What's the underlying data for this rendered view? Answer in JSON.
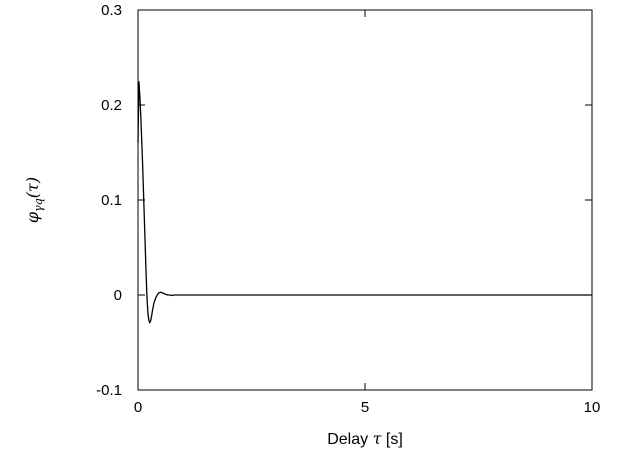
{
  "chart_data": {
    "type": "line",
    "title": "",
    "xlabel": {
      "prefix": "Delay ",
      "symbol": "τ",
      "suffix": " [s]"
    },
    "ylabel": {
      "symbol": "φ",
      "subscript": "γq",
      "arg": "(τ)"
    },
    "xlim": [
      0,
      10
    ],
    "ylim": [
      -0.1,
      0.3
    ],
    "xticks": [
      0,
      5,
      10
    ],
    "xtick_labels": [
      "0",
      "5",
      "10"
    ],
    "yticks": [
      -0.1,
      0,
      0.1,
      0.2,
      0.3
    ],
    "ytick_labels": [
      "-0.1",
      "0",
      "0.1",
      "0.2",
      "0.3"
    ],
    "grid": false,
    "series": [
      {
        "color": "#000000",
        "x": [
          0,
          0.02,
          0.04,
          0.06,
          0.08,
          0.1,
          0.12,
          0.14,
          0.16,
          0.18,
          0.2,
          0.22,
          0.24,
          0.26,
          0.28,
          0.3,
          0.32,
          0.34,
          0.36,
          0.4,
          0.45,
          0.5,
          0.55,
          0.6,
          0.65,
          0.7,
          0.75,
          0.8,
          0.9,
          1.0,
          1.2,
          1.5,
          2,
          3,
          4,
          5,
          6,
          7,
          8,
          9,
          10
        ],
        "y": [
          0.16,
          0.225,
          0.21,
          0.19,
          0.165,
          0.14,
          0.11,
          0.08,
          0.05,
          0.02,
          -0.005,
          -0.02,
          -0.027,
          -0.029,
          -0.027,
          -0.022,
          -0.016,
          -0.011,
          -0.007,
          -0.002,
          0.002,
          0.003,
          0.002,
          0.001,
          0.0,
          0.0,
          -0.0005,
          0.0,
          0.0,
          0.0,
          0.0,
          0.0,
          0.0,
          0.0,
          0.0,
          0.0,
          0.0,
          0.0,
          0.0,
          0.0,
          0.0
        ]
      }
    ]
  }
}
